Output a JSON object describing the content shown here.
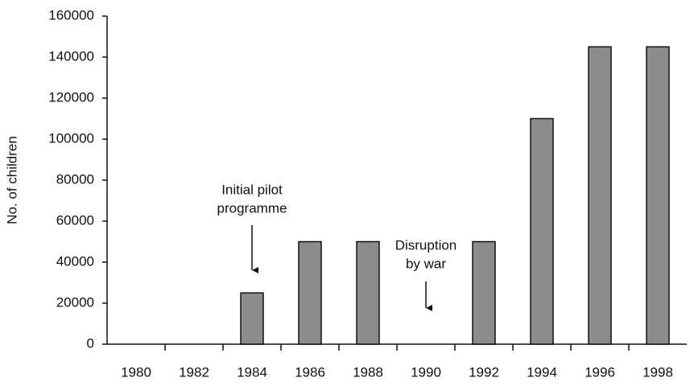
{
  "chart_data": {
    "type": "bar",
    "y_label": "No. of children",
    "categories": [
      "1980",
      "1982",
      "1984",
      "1986",
      "1988",
      "1990",
      "1992",
      "1994",
      "1996",
      "1998"
    ],
    "values": [
      0,
      0,
      25000,
      50000,
      50000,
      0,
      50000,
      110000,
      145000,
      145000
    ],
    "color": "#8c8c8c",
    "ylim": [
      0,
      160000
    ],
    "yticks": [
      0,
      20000,
      40000,
      60000,
      80000,
      100000,
      120000,
      140000,
      160000
    ],
    "grid": false,
    "annotations": [
      {
        "lines": [
          "Initial pilot",
          "programme"
        ],
        "category": "1984"
      },
      {
        "lines": [
          "Disruption",
          "by war"
        ],
        "category": "1990"
      }
    ]
  }
}
